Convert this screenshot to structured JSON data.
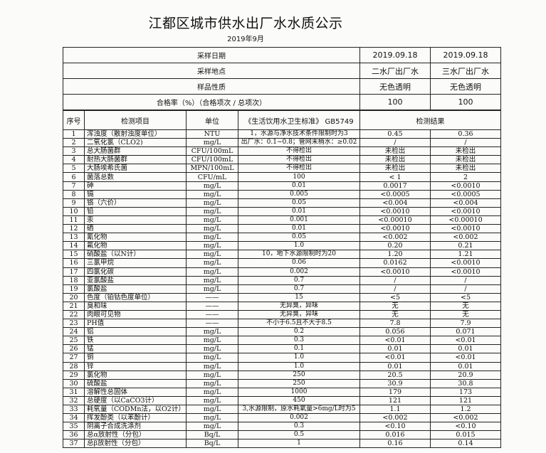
{
  "title": "江都区城市供水出厂水水质公示",
  "subtitle": "2019年9月",
  "summary": [
    {
      "label": "采样日期",
      "v1": "2019.09.18",
      "v2": "2019.09.18"
    },
    {
      "label": "采样地点",
      "v1": "二水厂出厂水",
      "v2": "三水厂出厂水"
    },
    {
      "label": "样品性质",
      "v1": "无色透明",
      "v2": "无色透明"
    },
    {
      "label": "合格率（%）（合格项次 / 总项次）",
      "v1": "100",
      "v2": "100"
    }
  ],
  "headers": {
    "no": "序号",
    "item": "检测项目",
    "unit": "单位",
    "standard": "《生活饮用水卫生标准》 GB5749",
    "result": "检测结果"
  },
  "rows": [
    {
      "no": "1",
      "item": "浑浊度（散射浊度单位）",
      "unit": "NTU",
      "std": "1，水源与净水技术条件限制时为3",
      "r1": "0.45",
      "r2": "0.36"
    },
    {
      "no": "2",
      "item": "二氧化氯（CLO2)",
      "unit": "mg/L",
      "std": "出厂水：0.1~0.8；管网末梢水：≥0.02",
      "r1": "/",
      "r2": "/"
    },
    {
      "no": "3",
      "item": "总大肠菌群",
      "unit": "CFU/100mL",
      "std": "不得检出",
      "r1": "未检出",
      "r2": "未检出"
    },
    {
      "no": "4",
      "item": "耐热大肠菌群",
      "unit": "CFU/100mL",
      "std": "不得检出",
      "r1": "未检出",
      "r2": "未检出"
    },
    {
      "no": "5",
      "item": "大肠埃希氏菌",
      "unit": "MPN/100mL",
      "std": "不得检出",
      "r1": "未检出",
      "r2": "未检出"
    },
    {
      "no": "6",
      "item": "菌落总数",
      "unit": "CFU/mL",
      "std": "100",
      "r1": "< 1",
      "r2": "2"
    },
    {
      "no": "7",
      "item": "砷",
      "unit": "mg/L",
      "std": "0.01",
      "r1": "0.0017",
      "r2": "<0.0010"
    },
    {
      "no": "8",
      "item": "镉",
      "unit": "mg/L",
      "std": "0.005",
      "r1": "<0.0005",
      "r2": "<0.0005"
    },
    {
      "no": "9",
      "item": "铬（六价）",
      "unit": "mg/L",
      "std": "0.05",
      "r1": "<0.004",
      "r2": "<0.004"
    },
    {
      "no": "10",
      "item": "铅",
      "unit": "mg/L",
      "std": "0.01",
      "r1": "<0.0010",
      "r2": "<0.0010"
    },
    {
      "no": "11",
      "item": "汞",
      "unit": "mg/L",
      "std": "0.001",
      "r1": "<0.00010",
      "r2": "<0.00010"
    },
    {
      "no": "12",
      "item": "硒",
      "unit": "mg/L",
      "std": "0.01",
      "r1": "<0.0010",
      "r2": "<0.0010"
    },
    {
      "no": "13",
      "item": "氰化物",
      "unit": "mg/L",
      "std": "0.05",
      "r1": "<0.002",
      "r2": "<0.002"
    },
    {
      "no": "14",
      "item": "氟化物",
      "unit": "mg/L",
      "std": "1.0",
      "r1": "0.20",
      "r2": "0.21"
    },
    {
      "no": "15",
      "item": "硝酸盐（以N计）",
      "unit": "mg/L",
      "std": "10，地下水源限制时为20",
      "r1": "1.20",
      "r2": "1.21"
    },
    {
      "no": "16",
      "item": "三氯甲烷",
      "unit": "mg/L",
      "std": "0.06",
      "r1": "0.0162",
      "r2": "<0.0010"
    },
    {
      "no": "17",
      "item": "四氯化碳",
      "unit": "mg/L",
      "std": "0.002",
      "r1": "<0.0010",
      "r2": "<0.0010"
    },
    {
      "no": "18",
      "item": "亚氯酸盐",
      "unit": "mg/L",
      "std": "0.7",
      "r1": "/",
      "r2": "/"
    },
    {
      "no": "19",
      "item": "氯酸盐",
      "unit": "mg/L",
      "std": "0.7",
      "r1": "/",
      "r2": "/"
    },
    {
      "no": "20",
      "item": "色度（铂钴色度单位）",
      "unit": "——",
      "std": "15",
      "r1": "<5",
      "r2": "<5"
    },
    {
      "no": "21",
      "item": "臭和味",
      "unit": "——",
      "std": "无异臭，异味",
      "r1": "无",
      "r2": "无"
    },
    {
      "no": "22",
      "item": "肉眼可见物",
      "unit": "——",
      "std": "无异臭，异味",
      "r1": "无",
      "r2": "无"
    },
    {
      "no": "23",
      "item": "PH值",
      "unit": "——",
      "std": "不小于6.5且不大于8.5",
      "r1": "7.8",
      "r2": "7.9"
    },
    {
      "no": "24",
      "item": "铝",
      "unit": "mg/L",
      "std": "0.2",
      "r1": "0.056",
      "r2": "0.071"
    },
    {
      "no": "25",
      "item": "铁",
      "unit": "mg/L",
      "std": "0.3",
      "r1": "<0.01",
      "r2": "<0.01"
    },
    {
      "no": "26",
      "item": "锰",
      "unit": "mg/L",
      "std": "0.1",
      "r1": "0.01",
      "r2": "0.01"
    },
    {
      "no": "27",
      "item": "铜",
      "unit": "mg/L",
      "std": "1.0",
      "r1": "<0.01",
      "r2": "<0.01"
    },
    {
      "no": "28",
      "item": "锌",
      "unit": "mg/L",
      "std": "1.0",
      "r1": "0.01",
      "r2": "0.01"
    },
    {
      "no": "29",
      "item": "氯化物",
      "unit": "mg/L",
      "std": "250",
      "r1": "20.5",
      "r2": "20.9"
    },
    {
      "no": "30",
      "item": "硫酸盐",
      "unit": "mg/L",
      "std": "250",
      "r1": "30.9",
      "r2": "30.8"
    },
    {
      "no": "31",
      "item": "溶解性总固体",
      "unit": "mg/L",
      "std": "1000",
      "r1": "179",
      "r2": "173"
    },
    {
      "no": "32",
      "item": "总硬度（以CaCO3计）",
      "unit": "mg/L",
      "std": "450",
      "r1": "121",
      "r2": "121"
    },
    {
      "no": "33",
      "item": "耗氧量（CODMn法，以O2计）",
      "unit": "mg/L",
      "std": "3,水源限制，原水耗氧量>6mg/L时为5",
      "r1": "1.1",
      "r2": "1.2"
    },
    {
      "no": "34",
      "item": "挥发酚类（以苯酚计）",
      "unit": "mg/L",
      "std": "0.002",
      "r1": "<0.002",
      "r2": "<0.002"
    },
    {
      "no": "35",
      "item": "阴离子合成洗涤剂",
      "unit": "mg/L",
      "std": "0.3",
      "r1": "<0.10",
      "r2": "<0.10"
    },
    {
      "no": "36",
      "item": "总α放射性（分包）",
      "unit": "Bq/L",
      "std": "0.5",
      "r1": "0.016",
      "r2": "0.015"
    },
    {
      "no": "37",
      "item": "总β放射性（分包）",
      "unit": "Bq/L",
      "std": "1",
      "r1": "0.16",
      "r2": "0.14"
    }
  ]
}
